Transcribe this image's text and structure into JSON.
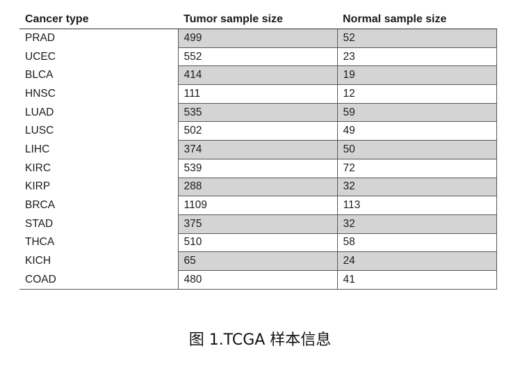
{
  "table": {
    "headers": [
      "Cancer type",
      "Tumor sample size",
      "Normal sample size"
    ],
    "rows": [
      {
        "type": "PRAD",
        "tumor": "499",
        "normal": "52",
        "shaded": true
      },
      {
        "type": "UCEC",
        "tumor": "552",
        "normal": "23",
        "shaded": false
      },
      {
        "type": "BLCA",
        "tumor": "414",
        "normal": "19",
        "shaded": true
      },
      {
        "type": "HNSC",
        "tumor": "111",
        "normal": "12",
        "shaded": false
      },
      {
        "type": "LUAD",
        "tumor": "535",
        "normal": "59",
        "shaded": true
      },
      {
        "type": "LUSC",
        "tumor": "502",
        "normal": "49",
        "shaded": false
      },
      {
        "type": "LIHC",
        "tumor": "374",
        "normal": "50",
        "shaded": true
      },
      {
        "type": "KIRC",
        "tumor": "539",
        "normal": "72",
        "shaded": false
      },
      {
        "type": "KIRP",
        "tumor": "288",
        "normal": "32",
        "shaded": true
      },
      {
        "type": "BRCA",
        "tumor": "1109",
        "normal": "113",
        "shaded": false
      },
      {
        "type": "STAD",
        "tumor": "375",
        "normal": "32",
        "shaded": true
      },
      {
        "type": "THCA",
        "tumor": "510",
        "normal": "58",
        "shaded": false
      },
      {
        "type": "KICH",
        "tumor": "65",
        "normal": "24",
        "shaded": true
      },
      {
        "type": "COAD",
        "tumor": "480",
        "normal": "41",
        "shaded": false
      }
    ]
  },
  "caption": "图 1.TCGA 样本信息",
  "colors": {
    "shaded_row": "#d4d4d4",
    "border": "#555555"
  }
}
